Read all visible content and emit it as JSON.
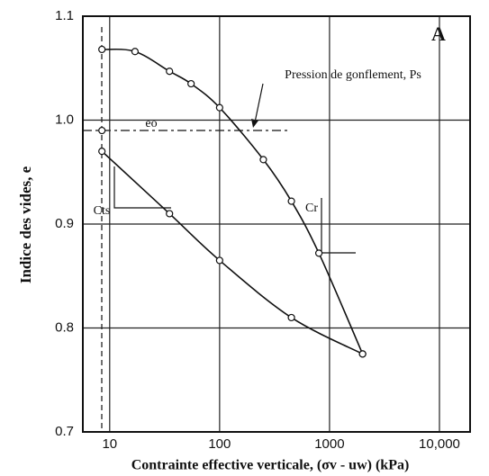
{
  "chart_data": {
    "type": "line",
    "x_label": "Contrainte effective verticale, (σv - uw) (kPa)",
    "y_label": "Indice des vides, e",
    "annotations": [
      "A",
      "Pression de gonflement, Ps",
      "eo",
      "Cts",
      "Cr"
    ],
    "xlog": true,
    "xlim": [
      5.7,
      19000
    ],
    "ylim": [
      0.7,
      1.1
    ],
    "xticks": [
      10,
      100,
      1000,
      {
        "value": 10000,
        "label": "10,000"
      }
    ],
    "yticks": [
      0.7,
      0.8,
      0.9,
      {
        "value": 1,
        "label": "1.0"
      },
      1.1
    ],
    "grid": true,
    "series": [
      {
        "color": "#111111",
        "x": [
          8.5,
          17,
          35,
          55,
          100,
          250,
          450,
          800,
          2000
        ],
        "values": [
          1.068,
          1.066,
          1.047,
          1.035,
          1.012,
          0.962,
          0.922,
          0.872,
          0.775
        ]
      },
      {
        "color": "#111111",
        "x": [
          2000,
          450,
          100,
          35,
          8.5
        ],
        "values": [
          0.775,
          0.81,
          0.865,
          0.91,
          0.97
        ]
      },
      {
        "color": "#111111",
        "x": [
          8.5
        ],
        "values": [
          0.99
        ]
      }
    ]
  }
}
